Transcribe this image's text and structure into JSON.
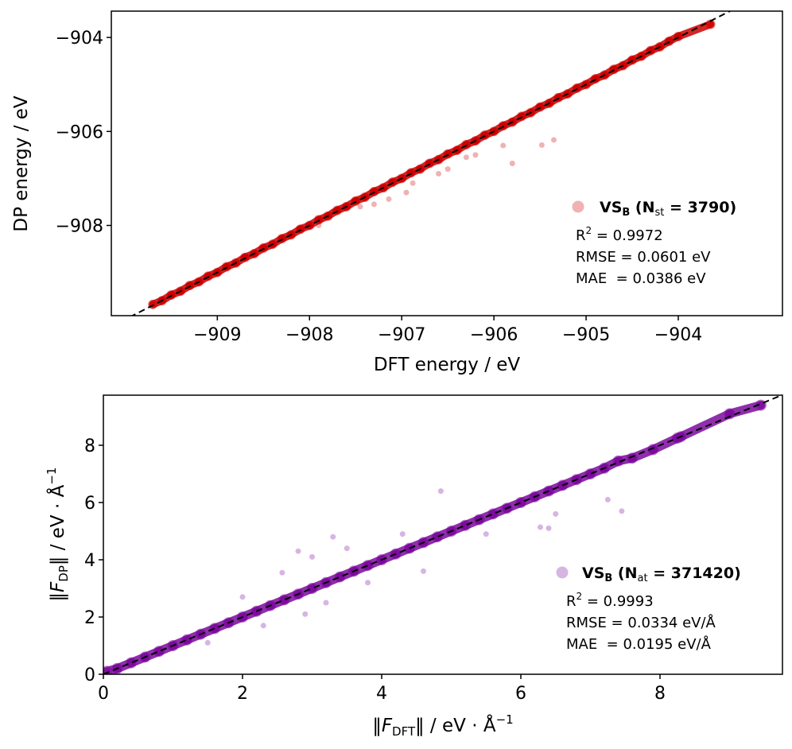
{
  "chart_data": [
    {
      "type": "scatter",
      "xlabel": "DFT energy / eV",
      "ylabel": "DP energy / eV",
      "xlim": [
        -910.15,
        -902.87
      ],
      "ylim": [
        -909.92,
        -903.44
      ],
      "xticks": [
        -909,
        -908,
        -907,
        -906,
        -905,
        -904
      ],
      "yticks": [
        -904,
        -906,
        -908
      ],
      "tick_labels_x": [
        "−909",
        "−908",
        "−907",
        "−906",
        "−905",
        "−904"
      ],
      "tick_labels_y": [
        "−904",
        "−906",
        "−908"
      ],
      "color": "#cc0000",
      "reference_line": "y = x (dashed black)",
      "legend": {
        "name_main": "VS",
        "name_sub": "B",
        "n_main": "N",
        "n_sub": "st",
        "n_value": "= 3790",
        "r2_main": "R",
        "r2_sup": "2",
        "r2_value": " = 0.9972",
        "rmse": "RMSE = 0.0601 eV",
        "mae": "MAE  = 0.0386 eV",
        "placement": "lower-right"
      },
      "points": [
        [
          -909.7,
          -909.68
        ],
        [
          -909.6,
          -909.6
        ],
        [
          -909.5,
          -909.48
        ],
        [
          -909.4,
          -909.4
        ],
        [
          -909.3,
          -909.28
        ],
        [
          -909.2,
          -909.2
        ],
        [
          -909.1,
          -909.08
        ],
        [
          -909.0,
          -909.0
        ],
        [
          -908.9,
          -908.88
        ],
        [
          -908.8,
          -908.8
        ],
        [
          -908.7,
          -908.68
        ],
        [
          -908.6,
          -908.6
        ],
        [
          -908.5,
          -908.48
        ],
        [
          -908.4,
          -908.4
        ],
        [
          -908.3,
          -908.28
        ],
        [
          -908.2,
          -908.2
        ],
        [
          -908.1,
          -908.08
        ],
        [
          -908.0,
          -908.0
        ],
        [
          -907.9,
          -907.88
        ],
        [
          -907.8,
          -907.8
        ],
        [
          -907.7,
          -907.68
        ],
        [
          -907.6,
          -907.6
        ],
        [
          -907.5,
          -907.48
        ],
        [
          -907.4,
          -907.4
        ],
        [
          -907.3,
          -907.28
        ],
        [
          -907.2,
          -907.2
        ],
        [
          -907.1,
          -907.08
        ],
        [
          -907.0,
          -907.0
        ],
        [
          -906.9,
          -906.88
        ],
        [
          -906.8,
          -906.8
        ],
        [
          -906.7,
          -906.68
        ],
        [
          -906.6,
          -906.6
        ],
        [
          -906.5,
          -906.48
        ],
        [
          -906.4,
          -906.4
        ],
        [
          -906.3,
          -906.28
        ],
        [
          -906.2,
          -906.2
        ],
        [
          -906.1,
          -906.08
        ],
        [
          -906.0,
          -906.0
        ],
        [
          -905.9,
          -905.88
        ],
        [
          -905.8,
          -905.8
        ],
        [
          -905.7,
          -905.68
        ],
        [
          -905.6,
          -905.6
        ],
        [
          -905.5,
          -905.48
        ],
        [
          -905.4,
          -905.4
        ],
        [
          -905.3,
          -905.28
        ],
        [
          -905.2,
          -905.2
        ],
        [
          -905.1,
          -905.08
        ],
        [
          -905.0,
          -905.0
        ],
        [
          -904.9,
          -904.88
        ],
        [
          -904.8,
          -904.8
        ],
        [
          -904.7,
          -904.68
        ],
        [
          -904.6,
          -904.6
        ],
        [
          -904.5,
          -904.48
        ],
        [
          -904.4,
          -904.4
        ],
        [
          -904.3,
          -904.28
        ],
        [
          -904.2,
          -904.2
        ],
        [
          -904.1,
          -904.08
        ],
        [
          -904.0,
          -903.98
        ],
        [
          -903.65,
          -903.72
        ],
        [
          -905.48,
          -906.29
        ],
        [
          -905.35,
          -906.18
        ],
        [
          -905.8,
          -906.68
        ],
        [
          -905.9,
          -906.3
        ],
        [
          -906.2,
          -906.5
        ],
        [
          -906.5,
          -906.8
        ],
        [
          -906.88,
          -907.1
        ],
        [
          -906.95,
          -907.3
        ],
        [
          -907.14,
          -907.44
        ],
        [
          -907.3,
          -907.55
        ],
        [
          -907.45,
          -907.6
        ],
        [
          -907.75,
          -907.7
        ],
        [
          -907.9,
          -908.0
        ],
        [
          -906.6,
          -906.9
        ],
        [
          -906.3,
          -906.55
        ]
      ]
    },
    {
      "type": "scatter",
      "xlabel_parts": {
        "open": "‖",
        "F": "F",
        "sub": "DFT",
        "close": "‖ / eV · Å",
        "sup": "−1"
      },
      "ylabel_parts": {
        "open": "‖",
        "F": "F",
        "sub": "DP",
        "close": "‖ / eV · Å",
        "sup": "−1"
      },
      "xlim": [
        0,
        9.76
      ],
      "ylim": [
        0,
        9.75
      ],
      "xticks": [
        0,
        2,
        4,
        6,
        8
      ],
      "yticks": [
        0,
        2,
        4,
        6,
        8
      ],
      "tick_labels_x": [
        "0",
        "2",
        "4",
        "6",
        "8"
      ],
      "tick_labels_y": [
        "0",
        "2",
        "4",
        "6",
        "8"
      ],
      "color": "#7b0a9e",
      "reference_line": "y = x (dashed black)",
      "legend": {
        "name_main": "VS",
        "name_sub": "B",
        "n_main": "N",
        "n_sub": "at",
        "n_value": "= 371420",
        "r2_main": "R",
        "r2_sup": "2",
        "r2_value": " = 0.9993",
        "rmse": "RMSE = 0.0334 eV/Å",
        "mae": "MAE  = 0.0195 eV/Å",
        "placement": "lower-right"
      },
      "points": [
        [
          0.05,
          0.1
        ],
        [
          0.2,
          0.2
        ],
        [
          0.4,
          0.4
        ],
        [
          0.6,
          0.6
        ],
        [
          0.8,
          0.8
        ],
        [
          1.0,
          1.0
        ],
        [
          1.2,
          1.2
        ],
        [
          1.4,
          1.4
        ],
        [
          1.6,
          1.6
        ],
        [
          1.8,
          1.8
        ],
        [
          2.0,
          2.0
        ],
        [
          2.2,
          2.2
        ],
        [
          2.4,
          2.4
        ],
        [
          2.6,
          2.6
        ],
        [
          2.8,
          2.8
        ],
        [
          3.0,
          3.0
        ],
        [
          3.2,
          3.2
        ],
        [
          3.4,
          3.4
        ],
        [
          3.6,
          3.6
        ],
        [
          3.8,
          3.8
        ],
        [
          4.0,
          4.0
        ],
        [
          4.2,
          4.2
        ],
        [
          4.4,
          4.4
        ],
        [
          4.6,
          4.6
        ],
        [
          4.8,
          4.8
        ],
        [
          5.0,
          5.0
        ],
        [
          5.2,
          5.2
        ],
        [
          5.4,
          5.4
        ],
        [
          5.6,
          5.6
        ],
        [
          5.8,
          5.8
        ],
        [
          6.0,
          6.0
        ],
        [
          6.2,
          6.2
        ],
        [
          6.4,
          6.4
        ],
        [
          6.6,
          6.6
        ],
        [
          6.8,
          6.8
        ],
        [
          7.0,
          7.0
        ],
        [
          7.2,
          7.2
        ],
        [
          7.4,
          7.45
        ],
        [
          7.6,
          7.55
        ],
        [
          7.9,
          7.85
        ],
        [
          8.25,
          8.25
        ],
        [
          8.3,
          8.3
        ],
        [
          9.0,
          9.1
        ],
        [
          9.45,
          9.4
        ],
        [
          7.25,
          6.1
        ],
        [
          7.45,
          5.7
        ],
        [
          6.28,
          5.14
        ],
        [
          6.4,
          5.1
        ],
        [
          4.85,
          6.4
        ],
        [
          2.57,
          3.55
        ],
        [
          2.8,
          4.3
        ],
        [
          3.0,
          4.1
        ],
        [
          3.2,
          2.5
        ],
        [
          2.9,
          2.1
        ],
        [
          3.5,
          4.4
        ],
        [
          3.8,
          3.2
        ],
        [
          2.3,
          1.7
        ],
        [
          1.5,
          1.1
        ],
        [
          4.3,
          4.9
        ],
        [
          5.5,
          4.9
        ],
        [
          6.5,
          5.6
        ],
        [
          4.6,
          3.6
        ],
        [
          3.3,
          4.8
        ],
        [
          2.0,
          2.7
        ]
      ]
    }
  ]
}
